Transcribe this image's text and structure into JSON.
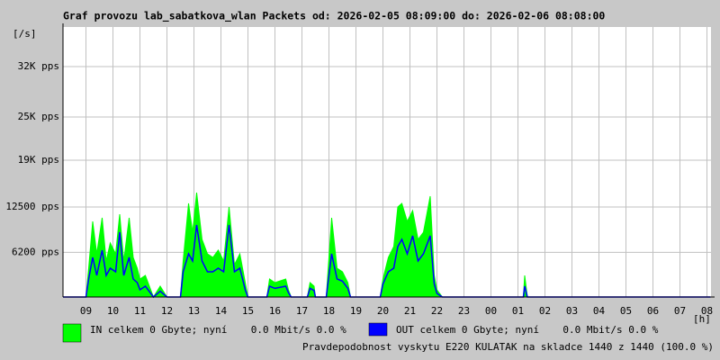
{
  "chart_data": {
    "type": "area",
    "title": "Graf provozu lab_sabatkova_wlan Packets od: 2026-02-05 08:09:00 do: 2026-02-06 08:08:00",
    "y_unit": "[/s]",
    "x_unit": "[h]",
    "footer": "Pravdepodobnost vyskytu E220 KULATAK na skladce 1440 z 1440 (100.0 %)",
    "x": [
      8.15,
      9.0,
      9.1,
      9.25,
      9.4,
      9.6,
      9.75,
      9.9,
      10.1,
      10.25,
      10.4,
      10.6,
      10.75,
      10.9,
      11.0,
      11.2,
      11.5,
      11.75,
      12.0,
      12.5,
      12.6,
      12.8,
      12.95,
      13.1,
      13.3,
      13.5,
      13.7,
      13.9,
      14.1,
      14.3,
      14.5,
      14.7,
      14.9,
      15.0,
      15.7,
      15.8,
      16.0,
      16.4,
      16.5,
      16.6,
      17.2,
      17.3,
      17.45,
      17.5,
      17.9,
      18.1,
      18.3,
      18.5,
      18.7,
      18.8,
      19.9,
      20.0,
      20.2,
      20.4,
      20.55,
      20.7,
      20.9,
      21.1,
      21.3,
      21.5,
      21.75,
      21.9,
      22.0,
      22.2,
      25.2,
      25.25,
      25.35,
      32.13
    ],
    "series": [
      {
        "name": "IN celkem 0 Gbyte; nyní    0.0 Mbit/s 0.0 %",
        "color": "#00ff00",
        "fill": true,
        "values": [
          0,
          0,
          4000,
          10500,
          6000,
          11000,
          5000,
          7500,
          6000,
          11500,
          5000,
          11000,
          5500,
          4000,
          2500,
          3000,
          0,
          1500,
          0,
          0,
          5000,
          13000,
          9000,
          14500,
          8000,
          6000,
          5500,
          6500,
          5000,
          12500,
          4500,
          6000,
          2000,
          0,
          0,
          2500,
          2000,
          2500,
          1000,
          0,
          0,
          2000,
          1500,
          0,
          0,
          11000,
          4000,
          3500,
          2000,
          0,
          0,
          2500,
          5500,
          7000,
          12500,
          13000,
          10500,
          12000,
          8000,
          9000,
          14000,
          3000,
          1000,
          0,
          0,
          3000,
          0,
          0
        ]
      },
      {
        "name": "OUT celkem 0 Gbyte; nyní    0.0 Mbit/s 0.0 %",
        "color": "#0000ff",
        "fill": false,
        "values": [
          0,
          0,
          2500,
          5500,
          3000,
          6500,
          3000,
          4000,
          3500,
          9000,
          3000,
          5500,
          2500,
          2000,
          1000,
          1500,
          0,
          800,
          0,
          0,
          3500,
          6000,
          5000,
          10000,
          5000,
          3500,
          3500,
          4000,
          3500,
          10000,
          3500,
          4000,
          1000,
          0,
          0,
          1500,
          1200,
          1500,
          600,
          0,
          0,
          1200,
          900,
          0,
          0,
          6000,
          2500,
          2200,
          1200,
          0,
          0,
          1800,
          3500,
          4000,
          7000,
          8000,
          6000,
          8500,
          5000,
          6000,
          8500,
          1800,
          500,
          0,
          0,
          1500,
          0,
          0
        ]
      }
    ],
    "xlim": [
      8.15,
      32.15
    ],
    "xticks": [
      {
        "value": 9,
        "label": "09"
      },
      10,
      11,
      12,
      13,
      14,
      15,
      16,
      17,
      18,
      19,
      20,
      21,
      22,
      23,
      {
        "value": 24,
        "label": "00"
      },
      {
        "value": 25,
        "label": "01"
      },
      {
        "value": 26,
        "label": "02"
      },
      {
        "value": 27,
        "label": "03"
      },
      {
        "value": 28,
        "label": "04"
      },
      {
        "value": 29,
        "label": "05"
      },
      {
        "value": 30,
        "label": "06"
      },
      {
        "value": 31,
        "label": "07"
      },
      {
        "value": 32,
        "label": "08"
      }
    ],
    "ylim": [
      0,
      37500
    ],
    "yticks": [
      {
        "value": 6200,
        "label": "6200 pps"
      },
      {
        "value": 12500,
        "label": "12500 pps"
      },
      {
        "value": 19000,
        "label": "19K pps"
      },
      {
        "value": 25000,
        "label": "25K pps"
      },
      {
        "value": 32000,
        "label": "32K pps"
      }
    ],
    "grid": true,
    "footer_color": "#ff0000"
  }
}
